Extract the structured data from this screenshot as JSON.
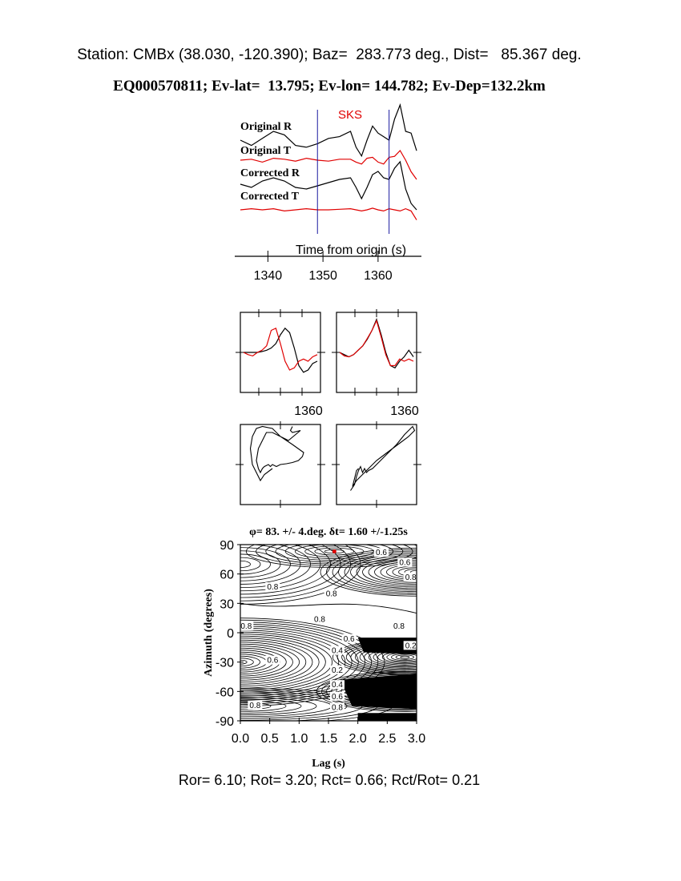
{
  "header": {
    "line1": "Station: CMBx (38.030, -120.390); Baz=  283.773 deg., Dist=   85.367 deg.",
    "line2": "EQ000570811; Ev-lat=  13.795; Ev-lon= 144.782; Ev-Dep=132.2km"
  },
  "colors": {
    "trace_primary": "#000000",
    "trace_secondary": "#e00000",
    "window_marker": "#1a1aa0",
    "phase_label": "#e00000",
    "best_fit_dot": "#e00000"
  },
  "chart_data": [
    {
      "type": "line",
      "panel": "seismograms",
      "phase_label": "SKS",
      "xlabel": "Time from origin (s)",
      "x_ticks": [
        "1340",
        "1350",
        "1360"
      ],
      "xlim": [
        1335,
        1367
      ],
      "window_markers": [
        1349,
        1362
      ],
      "series": [
        {
          "name": "Original R",
          "color": "#000000",
          "x": [
            1335,
            1337,
            1339,
            1341,
            1343,
            1345,
            1347,
            1349,
            1351,
            1353,
            1355,
            1356,
            1357,
            1358,
            1359,
            1360,
            1361,
            1362,
            1363,
            1364,
            1365,
            1366,
            1367
          ],
          "y": [
            0,
            -0.3,
            0.1,
            0.5,
            0.3,
            -0.3,
            -0.4,
            -0.2,
            0.1,
            0.2,
            0.5,
            -0.4,
            -0.9,
            0.0,
            0.8,
            0.4,
            0.2,
            0.0,
            1.2,
            2.0,
            0.5,
            0.4,
            -0.6
          ]
        },
        {
          "name": "Original T",
          "color": "#e00000",
          "x": [
            1335,
            1337,
            1339,
            1341,
            1343,
            1345,
            1347,
            1349,
            1351,
            1353,
            1355,
            1356,
            1357,
            1358,
            1359,
            1360,
            1361,
            1362,
            1363,
            1364,
            1365,
            1366,
            1367
          ],
          "y": [
            0,
            0.1,
            -0.2,
            0.2,
            0.1,
            -0.1,
            0.2,
            0.0,
            -0.1,
            0.1,
            0.1,
            -0.2,
            -0.4,
            0.2,
            0.3,
            -0.2,
            -0.4,
            0.3,
            0.4,
            1.0,
            0.0,
            -1.2,
            -2.0
          ]
        },
        {
          "name": "Corrected R",
          "color": "#000000",
          "x": [
            1335,
            1337,
            1339,
            1341,
            1343,
            1345,
            1347,
            1349,
            1351,
            1353,
            1355,
            1356,
            1357,
            1358,
            1359,
            1360,
            1361,
            1362,
            1363,
            1364,
            1365,
            1366,
            1367
          ],
          "y": [
            0,
            -0.2,
            0.2,
            0.4,
            0.2,
            -0.2,
            -0.3,
            -0.1,
            0.1,
            0.3,
            0.4,
            -0.2,
            -0.9,
            -0.2,
            0.6,
            0.8,
            0.4,
            0.3,
            1.0,
            1.4,
            -0.3,
            -1.2,
            -1.6
          ]
        },
        {
          "name": "Corrected T",
          "color": "#e00000",
          "x": [
            1335,
            1337,
            1339,
            1341,
            1343,
            1345,
            1347,
            1349,
            1351,
            1353,
            1355,
            1356,
            1357,
            1358,
            1359,
            1360,
            1361,
            1362,
            1363,
            1364,
            1365,
            1366,
            1367
          ],
          "y": [
            0,
            0.1,
            0.0,
            0.1,
            -0.1,
            0.0,
            0.1,
            0.0,
            0.0,
            0.05,
            0.1,
            0.0,
            -0.1,
            0.0,
            0.15,
            0.0,
            -0.1,
            0.1,
            0.0,
            -0.1,
            0.1,
            -0.1,
            -0.9
          ]
        }
      ]
    },
    {
      "type": "line",
      "panel": "waveform-overlay-original",
      "x_ticks": [
        "1360"
      ],
      "series": [
        {
          "name": "",
          "color": "#000000",
          "y": [
            0,
            0,
            0,
            0,
            0.02,
            0.05,
            0.1,
            0.2,
            0.4,
            0.55,
            0.45,
            0.1,
            -0.3,
            -0.45,
            -0.4,
            -0.25,
            -0.2
          ]
        },
        {
          "name": "",
          "color": "#e00000",
          "y": [
            0,
            -0.05,
            -0.08,
            0,
            0.05,
            0.15,
            0.5,
            0.55,
            0.2,
            -0.2,
            -0.4,
            -0.35,
            -0.2,
            -0.15,
            -0.2,
            -0.1,
            -0.05
          ]
        }
      ]
    },
    {
      "type": "line",
      "panel": "waveform-overlay-corrected",
      "x_ticks": [
        "1360"
      ],
      "series": [
        {
          "name": "",
          "color": "#000000",
          "y": [
            0,
            -0.05,
            -0.1,
            -0.05,
            0.05,
            0.15,
            0.3,
            0.5,
            0.75,
            0.4,
            0.0,
            -0.3,
            -0.35,
            -0.2,
            -0.1,
            0.05,
            -0.1
          ]
        },
        {
          "name": "",
          "color": "#e00000",
          "y": [
            0,
            -0.08,
            -0.1,
            -0.05,
            0.05,
            0.15,
            0.32,
            0.5,
            0.72,
            0.35,
            -0.05,
            -0.3,
            -0.3,
            -0.15,
            -0.2,
            -0.15,
            -0.2
          ]
        }
      ]
    },
    {
      "type": "line",
      "panel": "particle-motion-original",
      "series": [
        {
          "name": "",
          "color": "#000000",
          "x": [
            0.3,
            0.25,
            0.3,
            0.5,
            0.2,
            0.0,
            -0.2,
            -0.35,
            -0.45,
            -0.55,
            -0.6,
            -0.55,
            -0.5,
            -0.45,
            -0.4,
            -0.3,
            -0.25,
            -0.2,
            -0.1,
            0.0,
            0.15,
            0.3,
            0.45,
            0.55,
            0.58,
            0.3,
            0.0,
            -0.2,
            -0.45,
            -0.6,
            -0.7,
            -0.75,
            -0.7,
            -0.6,
            -0.5,
            -0.4,
            -0.2
          ],
          "y": [
            0.95,
            0.85,
            0.8,
            0.85,
            0.6,
            0.7,
            0.8,
            0.8,
            0.6,
            0.4,
            0.1,
            -0.1,
            -0.2,
            -0.1,
            -0.05,
            0.0,
            -0.05,
            0.0,
            -0.05,
            0.0,
            0.02,
            0.05,
            0.1,
            0.2,
            0.3,
            0.5,
            0.7,
            0.9,
            0.95,
            0.9,
            0.7,
            0.4,
            0.0,
            -0.2,
            -0.4,
            -0.25,
            -0.1
          ]
        }
      ]
    },
    {
      "type": "line",
      "panel": "particle-motion-corrected",
      "series": [
        {
          "name": "",
          "color": "#000000",
          "x": [
            -0.65,
            -0.55,
            -0.5,
            -0.45,
            -0.4,
            -0.35,
            -0.3,
            -0.25,
            -0.2,
            -0.1,
            0.1,
            0.3,
            0.5,
            0.7,
            0.9,
            0.95,
            0.8,
            0.6,
            0.4,
            0.2,
            0.0,
            -0.15,
            -0.3,
            -0.5,
            -0.6,
            -0.55,
            -0.5,
            -0.45
          ],
          "y": [
            -0.65,
            -0.5,
            -0.3,
            -0.15,
            -0.05,
            -0.2,
            -0.1,
            -0.2,
            -0.15,
            -0.1,
            0.1,
            0.3,
            0.5,
            0.75,
            0.95,
            0.85,
            0.7,
            0.55,
            0.4,
            0.25,
            0.1,
            -0.05,
            -0.2,
            -0.4,
            -0.55,
            -0.35,
            -0.15,
            -0.1
          ]
        }
      ]
    },
    {
      "type": "heatmap",
      "panel": "splitting-grid",
      "title": "φ= 83. +/- 4.deg.  δt= 1.60 +/-1.25s",
      "xlabel": "Lag (s)",
      "ylabel": "Azimuth (degrees)",
      "xlim": [
        0.0,
        3.0
      ],
      "ylim": [
        -90,
        90
      ],
      "x_ticks": [
        "0.0",
        "0.5",
        "1.0",
        "1.5",
        "2.0",
        "2.5",
        "3.0"
      ],
      "y_ticks": [
        "90",
        "60",
        "30",
        "0",
        "-30",
        "-60",
        "-90"
      ],
      "best_fit": {
        "x": 1.6,
        "y": 83
      },
      "contour_labels": [
        {
          "text": "0.8",
          "x": 0.55,
          "y": 45
        },
        {
          "text": "0.8",
          "x": 1.55,
          "y": 38
        },
        {
          "text": "0.8",
          "x": 1.35,
          "y": 12
        },
        {
          "text": "0.6",
          "x": 2.4,
          "y": 80
        },
        {
          "text": "0.6",
          "x": 2.8,
          "y": 70
        },
        {
          "text": "0.8",
          "x": 2.9,
          "y": 55
        },
        {
          "text": "0.8",
          "x": 0.1,
          "y": 5
        },
        {
          "text": "0.8",
          "x": 2.7,
          "y": 5
        },
        {
          "text": "0.6",
          "x": 1.85,
          "y": -8
        },
        {
          "text": "0.4",
          "x": 1.65,
          "y": -20
        },
        {
          "text": "0.2",
          "x": 2.9,
          "y": -15
        },
        {
          "text": "0.6",
          "x": 0.55,
          "y": -30
        },
        {
          "text": "0.2",
          "x": 1.65,
          "y": -40
        },
        {
          "text": "0.4",
          "x": 1.65,
          "y": -55
        },
        {
          "text": "0.6",
          "x": 1.65,
          "y": -67
        },
        {
          "text": "0.8",
          "x": 1.65,
          "y": -78
        },
        {
          "text": "0.8",
          "x": 0.25,
          "y": -76
        }
      ]
    }
  ],
  "footer": {
    "text": "Ror= 6.10; Rot= 3.20; Rct= 0.66; Rct/Rot= 0.21"
  }
}
